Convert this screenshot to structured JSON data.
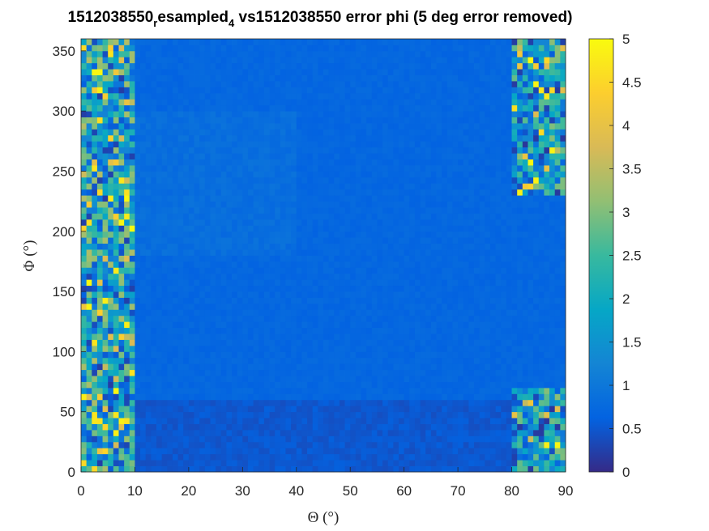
{
  "chart_data": {
    "type": "heatmap",
    "title": {
      "part1": "1512038550",
      "sub1": "r",
      "part2": "esampled",
      "sub2": "4",
      "part3": " vs1512038550 error phi (5 deg error removed)"
    },
    "xlabel": "Θ (°)",
    "ylabel": "Φ (°)",
    "xlim": [
      0,
      90
    ],
    "ylim": [
      0,
      360
    ],
    "xticks": [
      0,
      10,
      20,
      30,
      40,
      50,
      60,
      70,
      80,
      90
    ],
    "yticks": [
      0,
      50,
      100,
      150,
      200,
      250,
      300,
      350
    ],
    "colorbar": {
      "limits": [
        0,
        5
      ],
      "ticks": [
        0,
        0.5,
        1,
        1.5,
        2,
        2.5,
        3,
        3.5,
        4,
        4.5,
        5
      ],
      "tick_labels": [
        "0",
        "0.5",
        "1",
        "1.5",
        "2",
        "2.5",
        "3",
        "3.5",
        "4",
        "4.5",
        "5"
      ],
      "colormap": "parula"
    },
    "grid": {
      "theta_step": 1,
      "phi_step": 5
    },
    "background_level": 0.7,
    "regions": [
      {
        "theta": [
          0,
          10
        ],
        "phi": [
          0,
          360
        ],
        "level": 1.8,
        "noise": 1.6
      },
      {
        "theta": [
          80,
          90
        ],
        "phi": [
          0,
          70
        ],
        "level": 1.6,
        "noise": 1.5
      },
      {
        "theta": [
          80,
          90
        ],
        "phi": [
          230,
          360
        ],
        "level": 1.6,
        "noise": 1.5
      },
      {
        "theta": [
          10,
          40
        ],
        "phi": [
          180,
          300
        ],
        "level": 0.82,
        "noise": 0.1
      },
      {
        "theta": [
          10,
          80
        ],
        "phi": [
          0,
          60
        ],
        "level": 0.5,
        "noise": 0.1
      }
    ]
  }
}
